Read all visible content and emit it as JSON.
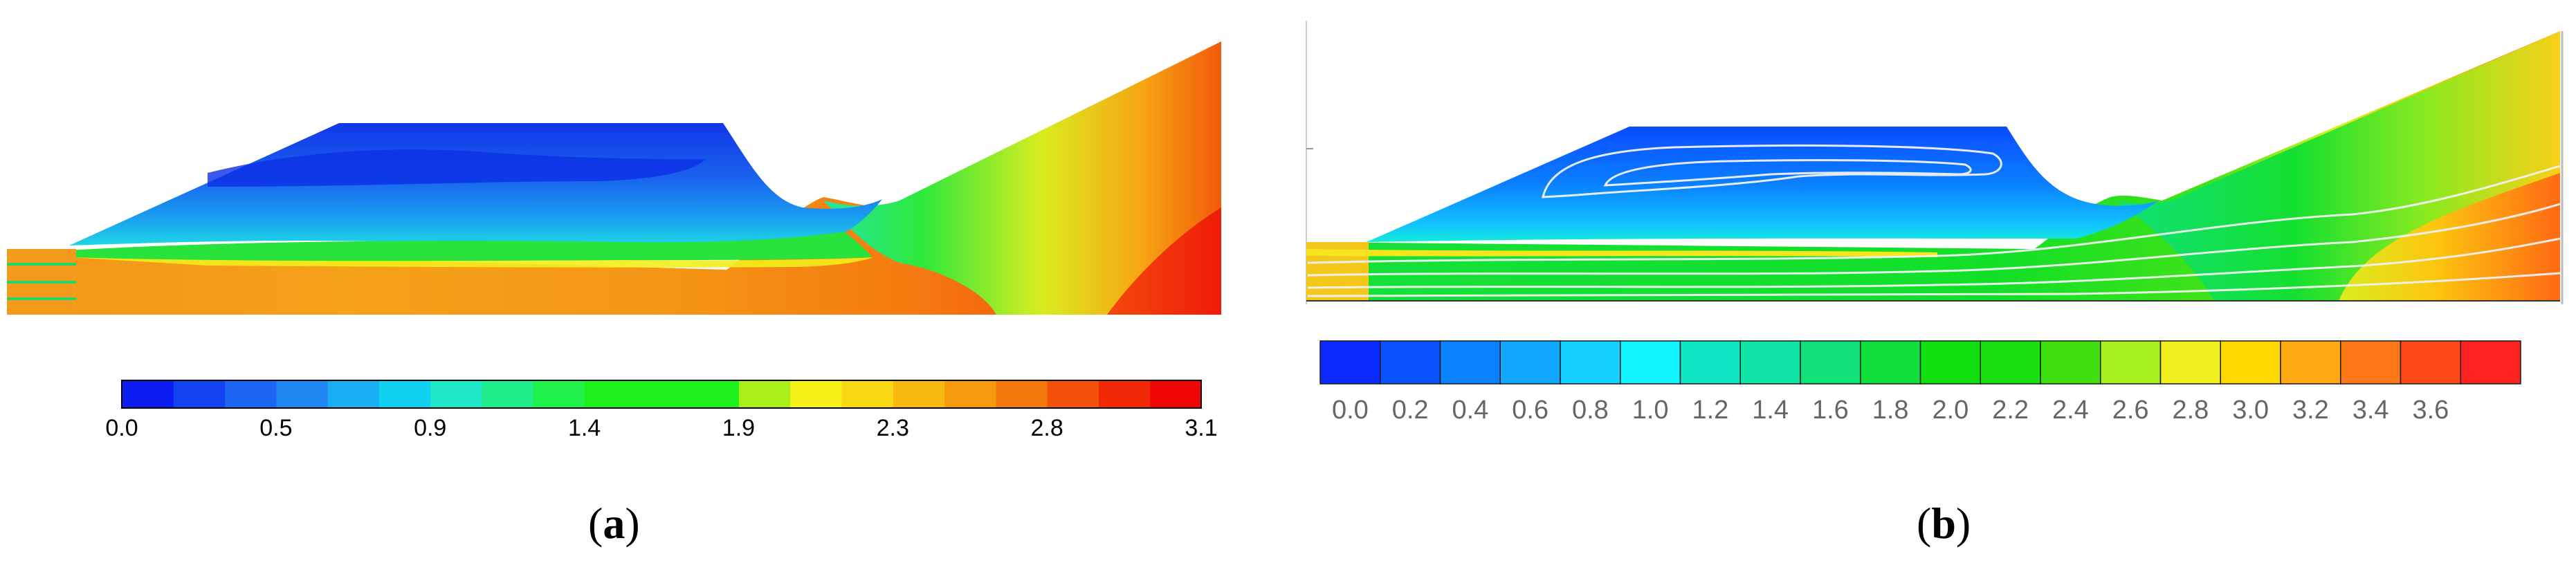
{
  "panels": [
    {
      "id": "a",
      "caption": "a",
      "colorbar": {
        "tick_labels": [
          "0.0",
          "0.5",
          "0.9",
          "1.4",
          "1.9",
          "2.3",
          "2.8",
          "3.1"
        ],
        "colors": [
          "#0b1df0",
          "#1444f2",
          "#1c66f3",
          "#1f88f2",
          "#19aef2",
          "#10d2f0",
          "#1fe9c8",
          "#20ec8c",
          "#1ff04a",
          "#1ef01d",
          "#1ef01d",
          "#1ef01d",
          "#a9ef1a",
          "#f7f21a",
          "#f9d814",
          "#f8b911",
          "#f69a0d",
          "#f5780c",
          "#f4510a",
          "#f22a07",
          "#f00606"
        ]
      }
    },
    {
      "id": "b",
      "caption": "b",
      "colorbar": {
        "tick_labels": [
          "0.0",
          "0.2",
          "0.4",
          "0.6",
          "0.8",
          "1.0",
          "1.2",
          "1.4",
          "1.6",
          "1.8",
          "2.0",
          "2.2",
          "2.4",
          "2.6",
          "2.8",
          "3.0",
          "3.2",
          "3.4",
          "3.6"
        ],
        "colors": [
          "#0a28ff",
          "#0a52ff",
          "#0a82ff",
          "#12a8ff",
          "#13d0ff",
          "#12f5ff",
          "#10e6c6",
          "#10e4a4",
          "#10e278",
          "#10e03c",
          "#10e010",
          "#18e010",
          "#40e010",
          "#a8f020",
          "#f0f020",
          "#ffd800",
          "#ffa810",
          "#ff7818",
          "#ff4818",
          "#ff2020"
        ]
      }
    }
  ]
}
